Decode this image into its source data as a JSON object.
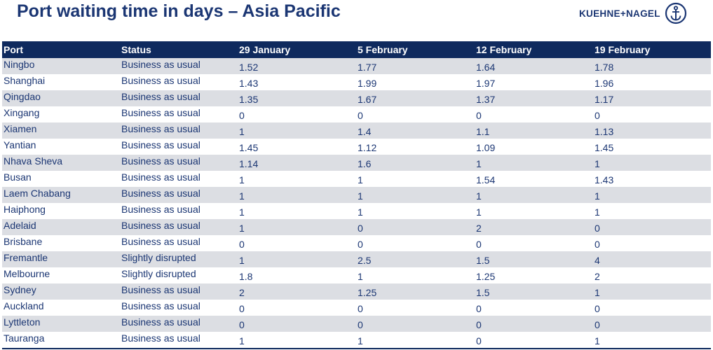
{
  "header": {
    "title": "Port waiting time in days – Asia Pacific",
    "logo_text": "KUEHNE+NAGEL"
  },
  "colors": {
    "brand_navy": "#1b3673",
    "header_bg": "#0f2a5e",
    "row_stripe": "#dcdee3"
  },
  "table": {
    "columns": [
      "Port",
      "Status",
      "29 January",
      "5 February",
      "12 February",
      "19 February"
    ],
    "rows": [
      {
        "port": "Ningbo",
        "status": "Business as usual",
        "values": [
          "1.52",
          "1.77",
          "1.64",
          "1.78"
        ]
      },
      {
        "port": "Shanghai",
        "status": "Business as usual",
        "values": [
          "1.43",
          "1.99",
          "1.97",
          "1.96"
        ]
      },
      {
        "port": "Qingdao",
        "status": "Business as usual",
        "values": [
          "1.35",
          "1.67",
          "1.37",
          "1.17"
        ]
      },
      {
        "port": "Xingang",
        "status": "Business as usual",
        "values": [
          "0",
          "0",
          "0",
          "0"
        ]
      },
      {
        "port": "Xiamen",
        "status": "Business as usual",
        "values": [
          "1",
          "1.4",
          "1.1",
          "1.13"
        ]
      },
      {
        "port": "Yantian",
        "status": "Business as usual",
        "values": [
          "1.45",
          "1.12",
          "1.09",
          "1.45"
        ]
      },
      {
        "port": "Nhava Sheva",
        "status": "Business as usual",
        "values": [
          "1.14",
          "1.6",
          "1",
          "1"
        ]
      },
      {
        "port": "Busan",
        "status": "Business as usual",
        "values": [
          "1",
          "1",
          "1.54",
          "1.43"
        ]
      },
      {
        "port": "Laem Chabang",
        "status": "Business as usual",
        "values": [
          "1",
          "1",
          "1",
          "1"
        ]
      },
      {
        "port": "Haiphong",
        "status": "Business as usual",
        "values": [
          "1",
          "1",
          "1",
          "1"
        ]
      },
      {
        "port": "Adelaid",
        "status": "Business as usual",
        "values": [
          "1",
          "0",
          "2",
          "0"
        ]
      },
      {
        "port": "Brisbane",
        "status": "Business as usual",
        "values": [
          "0",
          "0",
          "0",
          "0"
        ]
      },
      {
        "port": "Fremantle",
        "status": "Slightly disrupted",
        "values": [
          "1",
          "2.5",
          "1.5",
          "4"
        ]
      },
      {
        "port": "Melbourne",
        "status": "Slightly disrupted",
        "values": [
          "1.8",
          "1",
          "1.25",
          "2"
        ]
      },
      {
        "port": "Sydney",
        "status": "Business as usual",
        "values": [
          "2",
          "1.25",
          "1.5",
          "1"
        ]
      },
      {
        "port": "Auckland",
        "status": "Business as usual",
        "values": [
          "0",
          "0",
          "0",
          "0"
        ]
      },
      {
        "port": "Lyttleton",
        "status": "Business as usual",
        "values": [
          "0",
          "0",
          "0",
          "0"
        ]
      },
      {
        "port": "Tauranga",
        "status": "Business as usual",
        "values": [
          "1",
          "1",
          "0",
          "1"
        ]
      }
    ]
  }
}
